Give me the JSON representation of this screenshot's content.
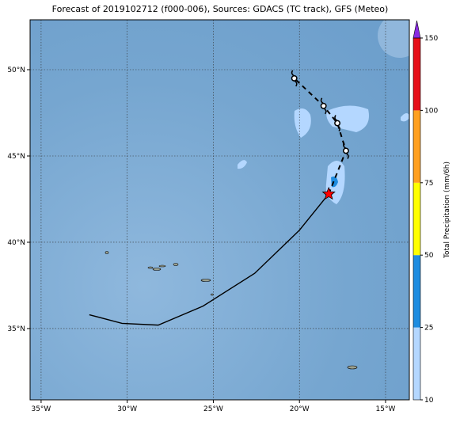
{
  "chart_data": {
    "type": "map",
    "title": "Forecast of 2019102712 (f000-006), Sources: GDACS (TC track), GFS (Meteo)",
    "xlim": [
      -35.64,
      -13.62
    ],
    "ylim": [
      30.87,
      52.89
    ],
    "xticks": [
      {
        "value": -35,
        "label": "35°W"
      },
      {
        "value": -30,
        "label": "30°W"
      },
      {
        "value": -25,
        "label": "25°W"
      },
      {
        "value": -20,
        "label": "20°W"
      },
      {
        "value": -15,
        "label": "15°W"
      }
    ],
    "yticks": [
      {
        "value": 35,
        "label": "35°N"
      },
      {
        "value": 40,
        "label": "40°N"
      },
      {
        "value": 45,
        "label": "45°N"
      },
      {
        "value": 50,
        "label": "50°N"
      }
    ],
    "grid": true,
    "past_track": {
      "lon": [
        -32.2,
        -30.3,
        -28.2,
        -25.6,
        -22.6,
        -20.0,
        -18.3
      ],
      "lat": [
        35.8,
        35.3,
        35.2,
        36.3,
        38.2,
        40.7,
        42.8
      ],
      "color": "#000000"
    },
    "forecast_track": {
      "lon": [
        -18.3,
        -17.3,
        -17.8,
        -18.6,
        -20.3
      ],
      "lat": [
        42.8,
        45.3,
        46.9,
        47.9,
        49.5
      ],
      "color": "#000000"
    },
    "current_position": {
      "lon": -18.3,
      "lat": 42.8,
      "color": "#ff0000"
    },
    "colorbar": {
      "label": "Total Precipitation (mm/6h)",
      "ticks": [
        10,
        25,
        50,
        75,
        100,
        150
      ],
      "colors": [
        "#b4d7ff",
        "#1e8ce0",
        "#ffff00",
        "#ffa020",
        "#e6101a"
      ],
      "extend_color": "#8a2be2"
    }
  }
}
